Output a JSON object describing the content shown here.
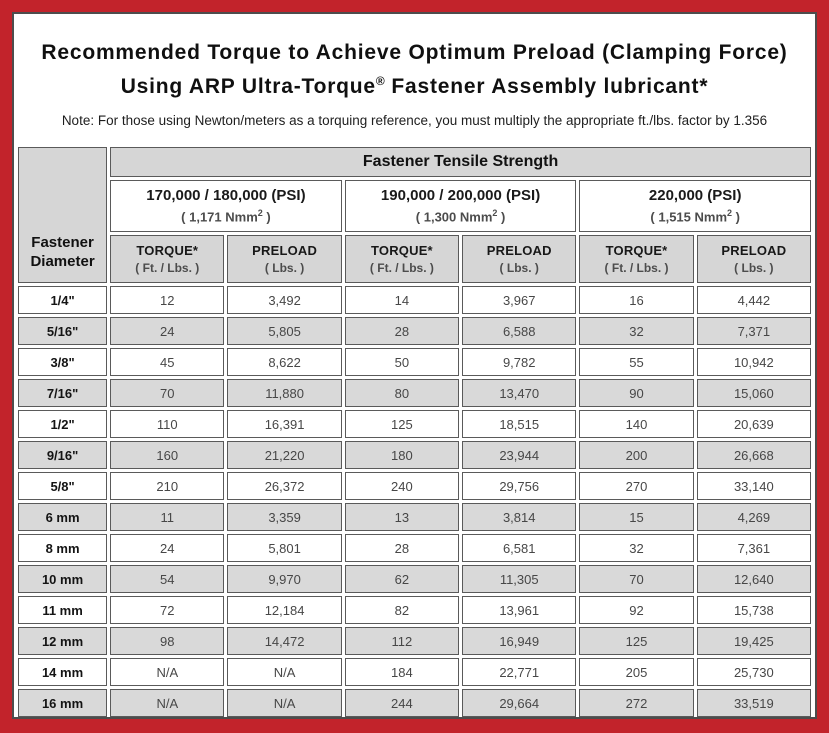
{
  "page": {
    "title_line1": "Recommended Torque to Achieve Optimum Preload (Clamping Force)",
    "title_line2_pre": "Using ARP Ultra-Torque",
    "title_line2_sup": "®",
    "title_line2_post": " Fastener Assembly lubricant*",
    "note": "Note: For those using Newton/meters as a torquing reference, you must multiply the appropriate ft./lbs. factor by 1.356"
  },
  "colors": {
    "frame_red": "#C2232B",
    "header_gray": "#D6D6D6",
    "row_stripe_gray": "#D9D9D9",
    "border_dark": "#5A5A5A"
  },
  "table": {
    "corner_line1": "Fastener",
    "corner_line2": "Diameter",
    "tensile_header": "Fastener Tensile Strength",
    "groups": [
      {
        "psi": "170,000 / 180,000 (PSI)",
        "nmm_prefix": "( 1,171 Nmm",
        "nmm_sup": "2",
        "nmm_suffix": " )"
      },
      {
        "psi": "190,000 / 200,000 (PSI)",
        "nmm_prefix": "( 1,300 Nmm",
        "nmm_sup": "2",
        "nmm_suffix": " )"
      },
      {
        "psi": "220,000 (PSI)",
        "nmm_prefix": "( 1,515 Nmm",
        "nmm_sup": "2",
        "nmm_suffix": " )"
      }
    ],
    "col_headers": [
      {
        "label": "TORQUE*",
        "unit": "( Ft. / Lbs. )"
      },
      {
        "label": "PRELOAD",
        "unit": "( Lbs. )"
      },
      {
        "label": "TORQUE*",
        "unit": "( Ft. / Lbs. )"
      },
      {
        "label": "PRELOAD",
        "unit": "( Lbs. )"
      },
      {
        "label": "TORQUE*",
        "unit": "( Ft. / Lbs. )"
      },
      {
        "label": "PRELOAD",
        "unit": "( Lbs. )"
      }
    ],
    "rows": [
      {
        "diameter": "1/4\"",
        "values": [
          "12",
          "3,492",
          "14",
          "3,967",
          "16",
          "4,442"
        ]
      },
      {
        "diameter": "5/16\"",
        "values": [
          "24",
          "5,805",
          "28",
          "6,588",
          "32",
          "7,371"
        ]
      },
      {
        "diameter": "3/8\"",
        "values": [
          "45",
          "8,622",
          "50",
          "9,782",
          "55",
          "10,942"
        ]
      },
      {
        "diameter": "7/16\"",
        "values": [
          "70",
          "11,880",
          "80",
          "13,470",
          "90",
          "15,060"
        ]
      },
      {
        "diameter": "1/2\"",
        "values": [
          "110",
          "16,391",
          "125",
          "18,515",
          "140",
          "20,639"
        ]
      },
      {
        "diameter": "9/16\"",
        "values": [
          "160",
          "21,220",
          "180",
          "23,944",
          "200",
          "26,668"
        ]
      },
      {
        "diameter": "5/8\"",
        "values": [
          "210",
          "26,372",
          "240",
          "29,756",
          "270",
          "33,140"
        ]
      },
      {
        "diameter": "6 mm",
        "values": [
          "11",
          "3,359",
          "13",
          "3,814",
          "15",
          "4,269"
        ]
      },
      {
        "diameter": "8 mm",
        "values": [
          "24",
          "5,801",
          "28",
          "6,581",
          "32",
          "7,361"
        ]
      },
      {
        "diameter": "10 mm",
        "values": [
          "54",
          "9,970",
          "62",
          "11,305",
          "70",
          "12,640"
        ]
      },
      {
        "diameter": "11 mm",
        "values": [
          "72",
          "12,184",
          "82",
          "13,961",
          "92",
          "15,738"
        ]
      },
      {
        "diameter": "12 mm",
        "values": [
          "98",
          "14,472",
          "112",
          "16,949",
          "125",
          "19,425"
        ]
      },
      {
        "diameter": "14 mm",
        "values": [
          "N/A",
          "N/A",
          "184",
          "22,771",
          "205",
          "25,730"
        ]
      },
      {
        "diameter": "16 mm",
        "values": [
          "N/A",
          "N/A",
          "244",
          "29,664",
          "272",
          "33,519"
        ]
      }
    ]
  }
}
